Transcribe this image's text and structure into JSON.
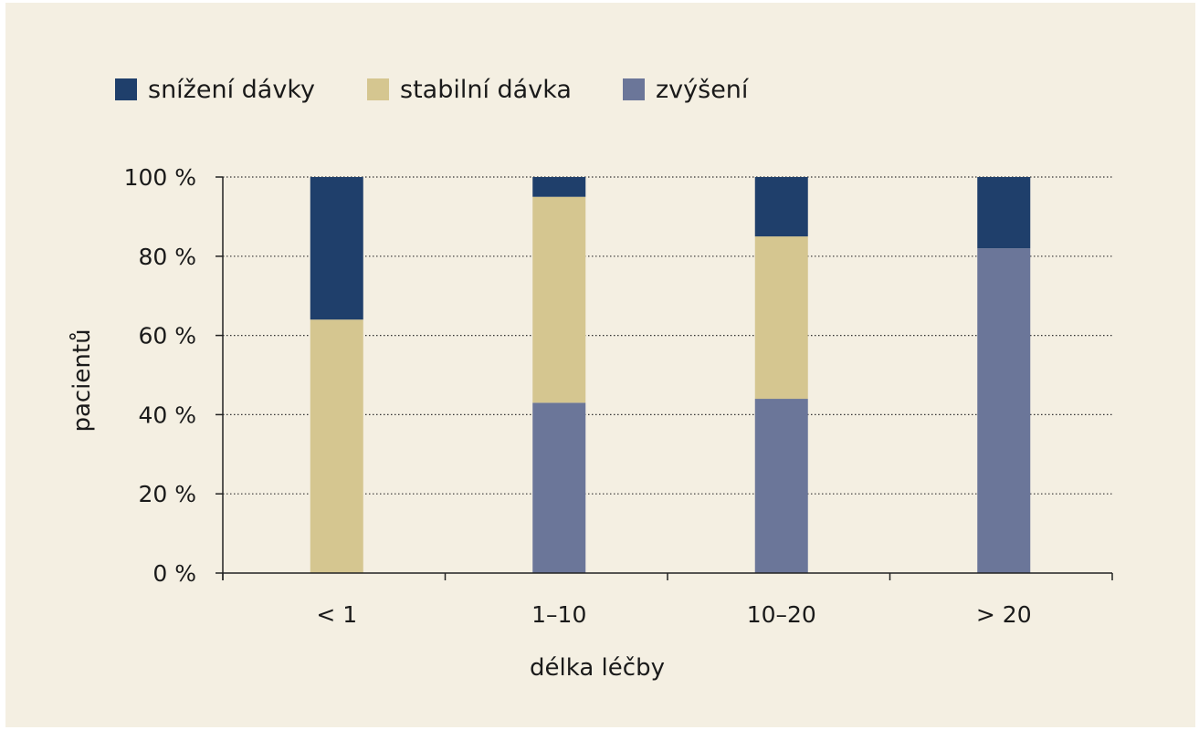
{
  "chart_data": {
    "type": "bar",
    "stacked": true,
    "xlabel": "délka léčby",
    "ylabel": "pacientů",
    "categories": [
      "< 1",
      "1–10",
      "10–20",
      "> 20"
    ],
    "y_ticks": [
      "0 %",
      "20 %",
      "40 %",
      "60 %",
      "80 %",
      "100 %"
    ],
    "ylim": [
      0,
      100
    ],
    "grid": "horizontal dotted",
    "legend_position": "top-left",
    "series": [
      {
        "name": "zvýšení",
        "color": "#6b7699",
        "values": [
          0,
          43,
          44,
          82
        ]
      },
      {
        "name": "stabilní dávka",
        "color": "#d5c690",
        "values": [
          64,
          52,
          41,
          0
        ]
      },
      {
        "name": "snížení dávky",
        "color": "#1f3f6b",
        "values": [
          36,
          5,
          15,
          18
        ]
      }
    ],
    "legend_order": [
      2,
      1,
      0
    ]
  }
}
